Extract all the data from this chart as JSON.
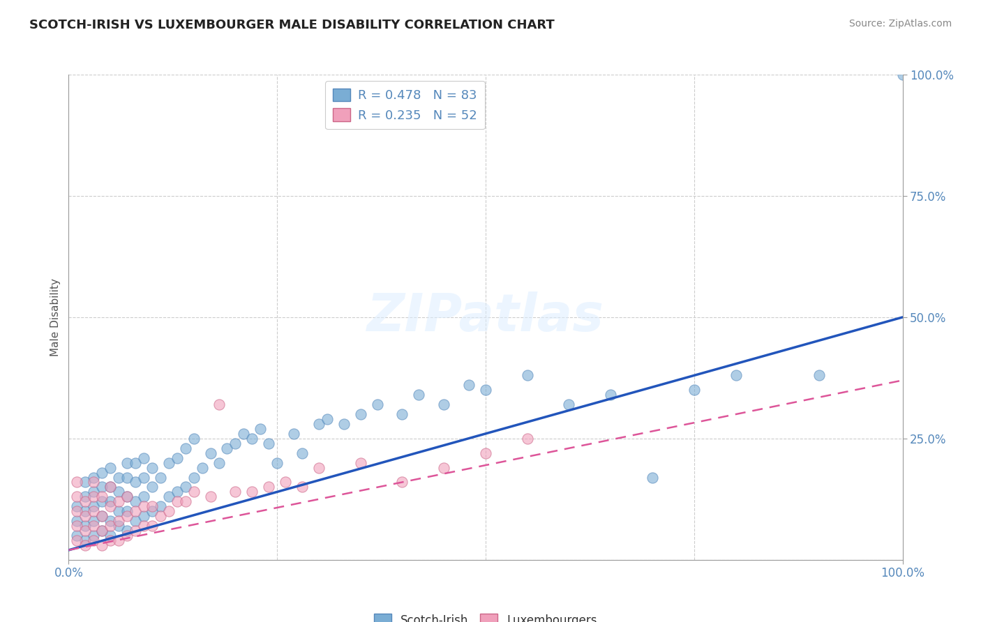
{
  "title": "SCOTCH-IRISH VS LUXEMBOURGER MALE DISABILITY CORRELATION CHART",
  "source": "Source: ZipAtlas.com",
  "ylabel": "Male Disability",
  "xlim": [
    0.0,
    1.0
  ],
  "ylim": [
    0.0,
    1.0
  ],
  "grid_color": "#cccccc",
  "background_color": "#ffffff",
  "watermark": "ZIPatlas",
  "scotch_irish_color": "#7aadd4",
  "scotch_irish_edge": "#5588bb",
  "luxembourger_color": "#f0a0bb",
  "luxembourger_edge": "#cc6688",
  "blue_line_color": "#2255bb",
  "pink_line_color": "#dd5599",
  "tick_color": "#5588bb",
  "R_scotch": 0.478,
  "N_scotch": 83,
  "R_lux": 0.235,
  "N_lux": 52,
  "blue_line": [
    0.0,
    0.02,
    0.5,
    1.0
  ],
  "scotch_x": [
    0.01,
    0.01,
    0.01,
    0.02,
    0.02,
    0.02,
    0.02,
    0.02,
    0.03,
    0.03,
    0.03,
    0.03,
    0.03,
    0.04,
    0.04,
    0.04,
    0.04,
    0.04,
    0.05,
    0.05,
    0.05,
    0.05,
    0.05,
    0.06,
    0.06,
    0.06,
    0.06,
    0.07,
    0.07,
    0.07,
    0.07,
    0.07,
    0.08,
    0.08,
    0.08,
    0.08,
    0.09,
    0.09,
    0.09,
    0.09,
    0.1,
    0.1,
    0.1,
    0.11,
    0.11,
    0.12,
    0.12,
    0.13,
    0.13,
    0.14,
    0.14,
    0.15,
    0.15,
    0.16,
    0.17,
    0.18,
    0.19,
    0.2,
    0.21,
    0.22,
    0.23,
    0.24,
    0.25,
    0.27,
    0.28,
    0.3,
    0.31,
    0.33,
    0.35,
    0.37,
    0.4,
    0.42,
    0.45,
    0.48,
    0.5,
    0.55,
    0.6,
    0.65,
    0.7,
    0.75,
    0.8,
    0.9,
    1.0
  ],
  "scotch_y": [
    0.05,
    0.08,
    0.11,
    0.04,
    0.07,
    0.1,
    0.13,
    0.16,
    0.05,
    0.08,
    0.11,
    0.14,
    0.17,
    0.06,
    0.09,
    0.12,
    0.15,
    0.18,
    0.05,
    0.08,
    0.12,
    0.15,
    0.19,
    0.07,
    0.1,
    0.14,
    0.17,
    0.06,
    0.1,
    0.13,
    0.17,
    0.2,
    0.08,
    0.12,
    0.16,
    0.2,
    0.09,
    0.13,
    0.17,
    0.21,
    0.1,
    0.15,
    0.19,
    0.11,
    0.17,
    0.13,
    0.2,
    0.14,
    0.21,
    0.15,
    0.23,
    0.17,
    0.25,
    0.19,
    0.22,
    0.2,
    0.23,
    0.24,
    0.26,
    0.25,
    0.27,
    0.24,
    0.2,
    0.26,
    0.22,
    0.28,
    0.29,
    0.28,
    0.3,
    0.32,
    0.3,
    0.34,
    0.32,
    0.36,
    0.35,
    0.38,
    0.32,
    0.34,
    0.17,
    0.35,
    0.38,
    0.38,
    1.0
  ],
  "lux_x": [
    0.01,
    0.01,
    0.01,
    0.01,
    0.01,
    0.02,
    0.02,
    0.02,
    0.02,
    0.03,
    0.03,
    0.03,
    0.03,
    0.03,
    0.04,
    0.04,
    0.04,
    0.04,
    0.05,
    0.05,
    0.05,
    0.05,
    0.06,
    0.06,
    0.06,
    0.07,
    0.07,
    0.07,
    0.08,
    0.08,
    0.09,
    0.09,
    0.1,
    0.1,
    0.11,
    0.12,
    0.13,
    0.14,
    0.15,
    0.17,
    0.18,
    0.2,
    0.22,
    0.24,
    0.26,
    0.28,
    0.3,
    0.35,
    0.4,
    0.45,
    0.5,
    0.55
  ],
  "lux_y": [
    0.04,
    0.07,
    0.1,
    0.13,
    0.16,
    0.03,
    0.06,
    0.09,
    0.12,
    0.04,
    0.07,
    0.1,
    0.13,
    0.16,
    0.03,
    0.06,
    0.09,
    0.13,
    0.04,
    0.07,
    0.11,
    0.15,
    0.04,
    0.08,
    0.12,
    0.05,
    0.09,
    0.13,
    0.06,
    0.1,
    0.07,
    0.11,
    0.07,
    0.11,
    0.09,
    0.1,
    0.12,
    0.12,
    0.14,
    0.13,
    0.32,
    0.14,
    0.14,
    0.15,
    0.16,
    0.15,
    0.19,
    0.2,
    0.16,
    0.19,
    0.22,
    0.25
  ]
}
